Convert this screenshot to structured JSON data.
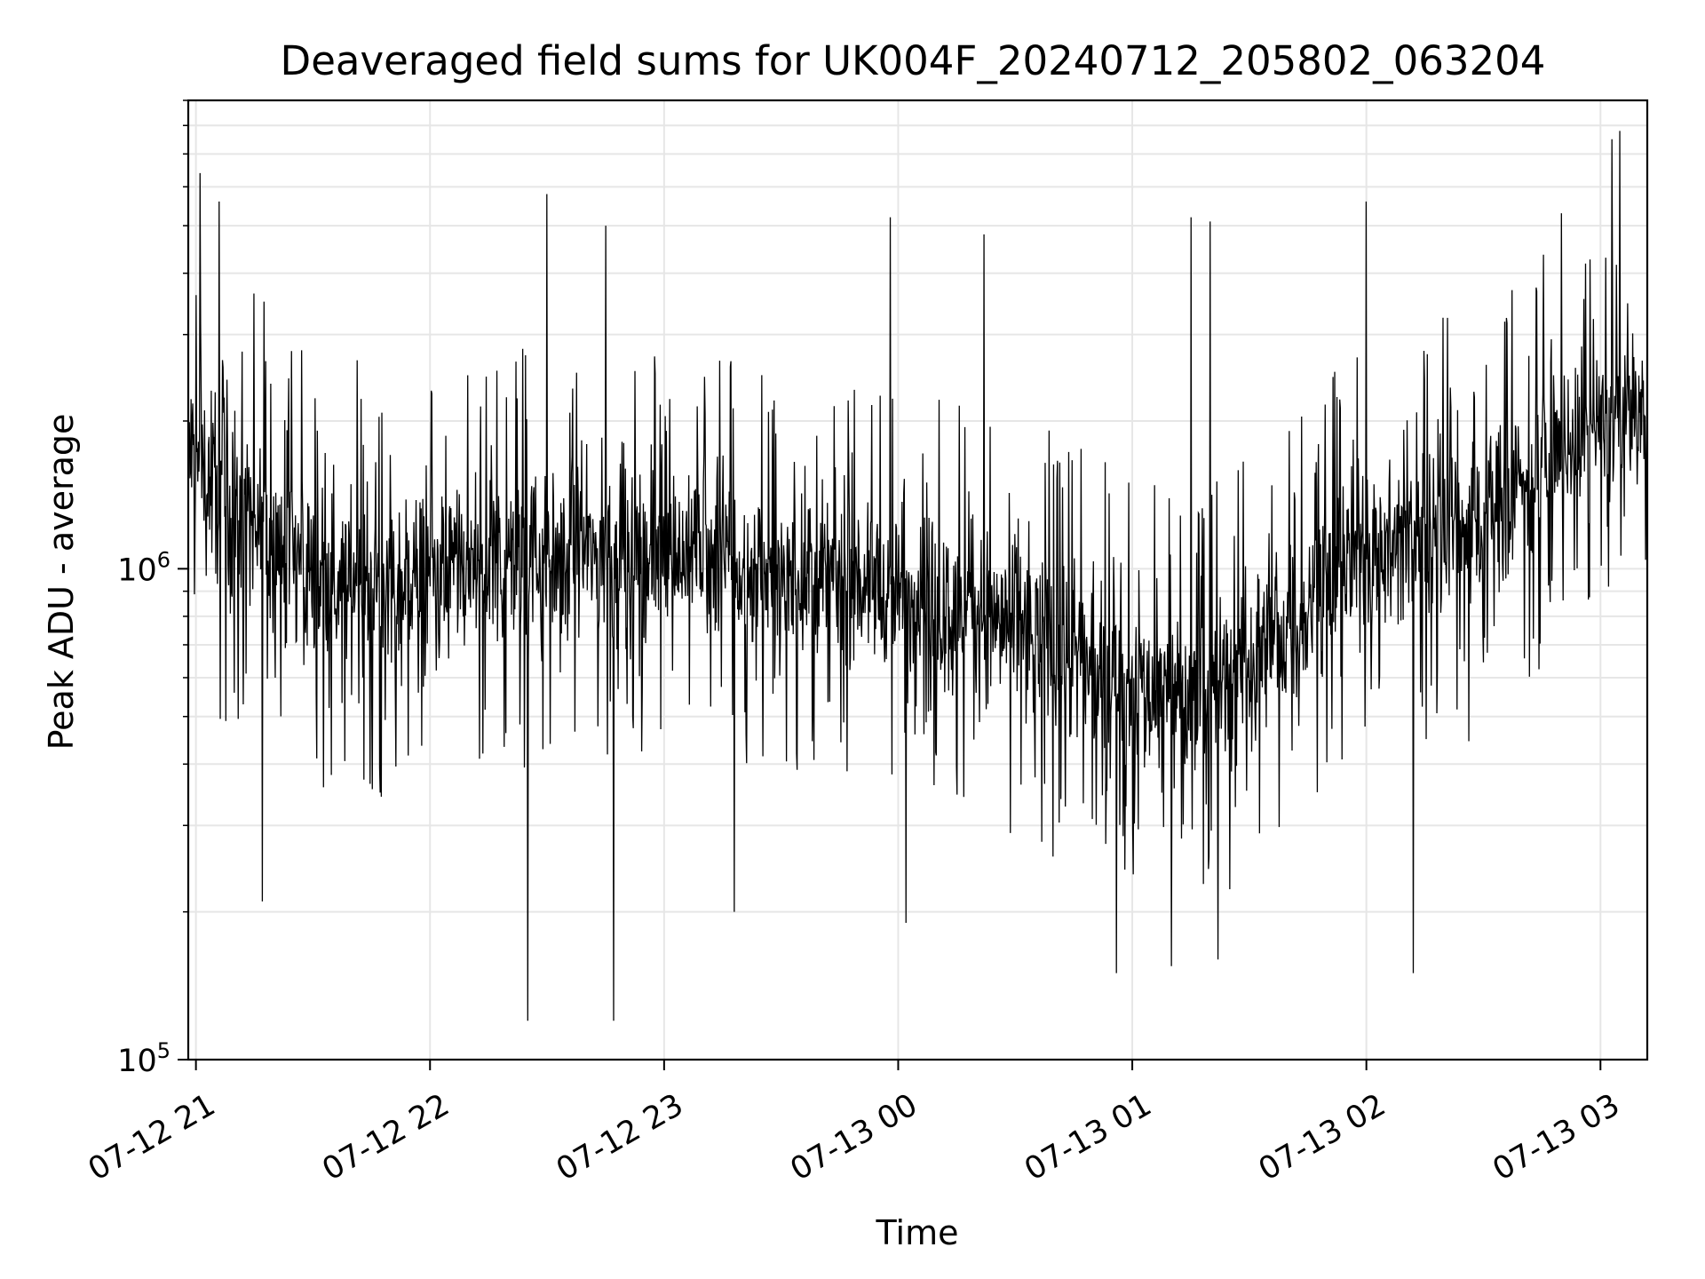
{
  "chart_data": {
    "type": "line",
    "title": "Deaveraged field sums for UK004F_20240712_205802_063204",
    "xlabel": "Time",
    "ylabel": "Peak ADU - average",
    "x_axis": {
      "kind": "datetime",
      "start": "2024-07-12 20:58:02",
      "end": "2024-07-13 03:12:00",
      "tick_labels": [
        "07-12 21",
        "07-12 22",
        "07-12 23",
        "07-13 00",
        "07-13 01",
        "07-13 02",
        "07-13 03"
      ],
      "tick_times": [
        "2024-07-12 21:00",
        "2024-07-12 22:00",
        "2024-07-12 23:00",
        "2024-07-13 00:00",
        "2024-07-13 01:00",
        "2024-07-13 02:00",
        "2024-07-13 03:00"
      ]
    },
    "y_axis": {
      "scale": "log",
      "ylim": [
        100000,
        9000000
      ],
      "tick_labels": [
        {
          "value": 100000,
          "base": "10",
          "exp": "5"
        },
        {
          "value": 1000000,
          "base": "10",
          "exp": "6"
        }
      ]
    },
    "grid": true,
    "series": [
      {
        "color": "#000000",
        "envelope": [
          {
            "time": "2024-07-12 20:58",
            "low": 1100000,
            "high": 2700000
          },
          {
            "time": "2024-07-12 21:10",
            "low": 800000,
            "high": 2200000
          },
          {
            "time": "2024-07-12 21:30",
            "low": 600000,
            "high": 1600000
          },
          {
            "time": "2024-07-12 22:00",
            "low": 600000,
            "high": 1500000
          },
          {
            "time": "2024-07-12 22:30",
            "low": 650000,
            "high": 1700000
          },
          {
            "time": "2024-07-12 23:00",
            "low": 700000,
            "high": 1700000
          },
          {
            "time": "2024-07-12 23:30",
            "low": 650000,
            "high": 1500000
          },
          {
            "time": "2024-07-13 00:00",
            "low": 600000,
            "high": 1400000
          },
          {
            "time": "2024-07-13 00:30",
            "low": 480000,
            "high": 1200000
          },
          {
            "time": "2024-07-13 01:00",
            "low": 360000,
            "high": 900000
          },
          {
            "time": "2024-07-13 01:20",
            "low": 340000,
            "high": 850000
          },
          {
            "time": "2024-07-13 01:45",
            "low": 520000,
            "high": 1300000
          },
          {
            "time": "2024-07-13 02:00",
            "low": 700000,
            "high": 1700000
          },
          {
            "time": "2024-07-13 02:30",
            "low": 750000,
            "high": 2000000
          },
          {
            "time": "2024-07-13 02:50",
            "low": 1200000,
            "high": 2800000
          },
          {
            "time": "2024-07-13 03:12",
            "low": 1500000,
            "high": 2900000
          }
        ],
        "spikes_up": [
          {
            "time": "2024-07-12 21:01",
            "value": 6400000
          },
          {
            "time": "2024-07-12 21:06",
            "value": 5600000
          },
          {
            "time": "2024-07-12 22:30",
            "value": 5800000
          },
          {
            "time": "2024-07-12 22:45",
            "value": 5000000
          },
          {
            "time": "2024-07-12 23:58",
            "value": 5200000
          },
          {
            "time": "2024-07-13 00:22",
            "value": 4800000
          },
          {
            "time": "2024-07-13 01:15",
            "value": 5200000
          },
          {
            "time": "2024-07-13 01:20",
            "value": 5100000
          },
          {
            "time": "2024-07-13 02:00",
            "value": 5600000
          },
          {
            "time": "2024-07-13 02:50",
            "value": 5300000
          },
          {
            "time": "2024-07-13 03:03",
            "value": 7500000
          },
          {
            "time": "2024-07-13 03:05",
            "value": 7800000
          }
        ],
        "spikes_down": [
          {
            "time": "2024-07-12 21:17",
            "value": 210000
          },
          {
            "time": "2024-07-12 22:25",
            "value": 120000
          },
          {
            "time": "2024-07-12 22:47",
            "value": 120000
          },
          {
            "time": "2024-07-12 23:18",
            "value": 200000
          },
          {
            "time": "2024-07-13 00:02",
            "value": 190000
          },
          {
            "time": "2024-07-13 00:56",
            "value": 150000
          },
          {
            "time": "2024-07-13 01:10",
            "value": 155000
          },
          {
            "time": "2024-07-13 01:22",
            "value": 160000
          },
          {
            "time": "2024-07-13 02:12",
            "value": 150000
          }
        ]
      }
    ]
  }
}
